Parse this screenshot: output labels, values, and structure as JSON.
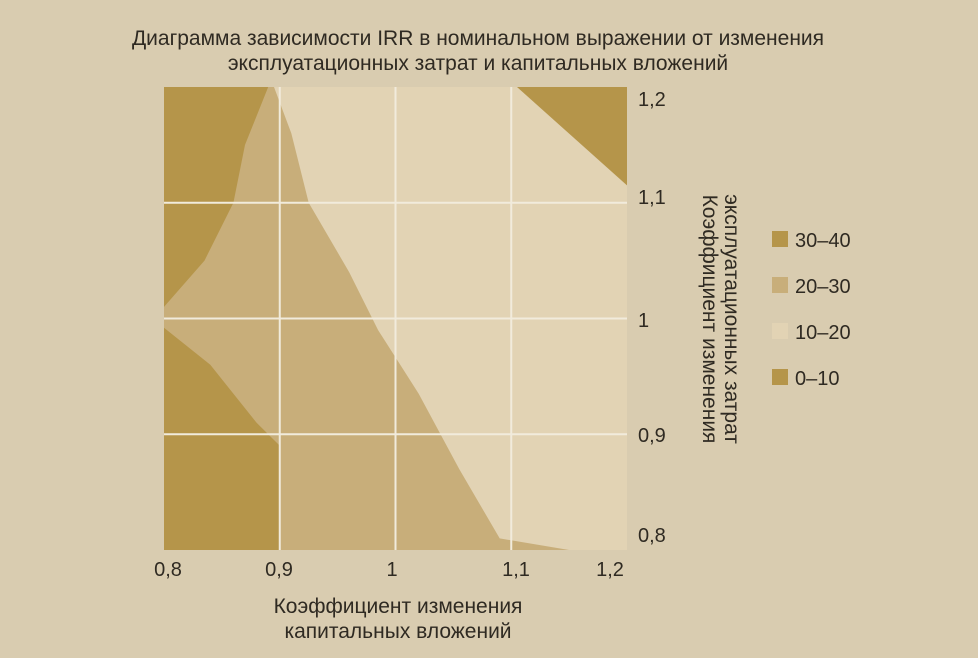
{
  "chart_data": {
    "type": "heatmap",
    "title": [
      "Диаграмма зависимости IRR в номинальном выражении от изменения",
      "эксплуатационных затрат и капитальных вложений"
    ],
    "xlabel": [
      "Коэффициент изменения",
      "капитальных вложений"
    ],
    "ylabel": [
      "Коэффициент изменения",
      "эксплуатационных затрат"
    ],
    "x_ticks": [
      "0,8",
      "0,9",
      "1",
      "1,1",
      "1,2"
    ],
    "y_ticks": [
      "1,2",
      "1,1",
      "1",
      "0,9",
      "0,8"
    ],
    "xlim": [
      0.8,
      1.2
    ],
    "ylim": [
      0.8,
      1.2
    ],
    "grid": true,
    "legend_position": "right",
    "legend": [
      {
        "label": "30–40",
        "color": "#b5954a"
      },
      {
        "label": "20–30",
        "color": "#c8ae7a"
      },
      {
        "label": "10–20",
        "color": "#e2d3b4"
      },
      {
        "label": "0–10",
        "color": "#b5954a"
      }
    ],
    "regions": [
      {
        "range": "20–30",
        "color": "#c8ae7a",
        "polygon": [
          [
            0.8,
            0.8
          ],
          [
            1.2,
            0.8
          ],
          [
            1.2,
            1.2
          ],
          [
            0.8,
            1.2
          ]
        ]
      },
      {
        "range": "10–20",
        "color": "#e2d3b4",
        "polygon": [
          [
            0.895,
            1.2
          ],
          [
            0.91,
            1.16
          ],
          [
            0.925,
            1.1
          ],
          [
            0.96,
            1.04
          ],
          [
            0.985,
            0.99
          ],
          [
            1.02,
            0.935
          ],
          [
            1.055,
            0.87
          ],
          [
            1.09,
            0.81
          ],
          [
            1.15,
            0.8
          ],
          [
            1.2,
            0.8
          ],
          [
            1.2,
            1.2
          ]
        ]
      },
      {
        "range": "30–40",
        "color": "#b5954a",
        "polygon": [
          [
            0.8,
            1.2
          ],
          [
            0.89,
            1.2
          ],
          [
            0.87,
            1.15
          ],
          [
            0.86,
            1.1
          ],
          [
            0.835,
            1.05
          ],
          [
            0.8,
            1.01
          ]
        ]
      },
      {
        "range": "30–40",
        "color": "#b5954a",
        "polygon": [
          [
            0.8,
            0.8
          ],
          [
            0.8,
            0.992
          ],
          [
            0.84,
            0.96
          ],
          [
            0.88,
            0.91
          ],
          [
            0.9,
            0.89
          ],
          [
            0.9,
            0.8
          ]
        ]
      },
      {
        "range": "0–10",
        "color": "#b5954a",
        "polygon": [
          [
            1.105,
            1.2
          ],
          [
            1.2,
            1.2
          ],
          [
            1.2,
            1.115
          ]
        ]
      }
    ],
    "regions_note": ""
  }
}
